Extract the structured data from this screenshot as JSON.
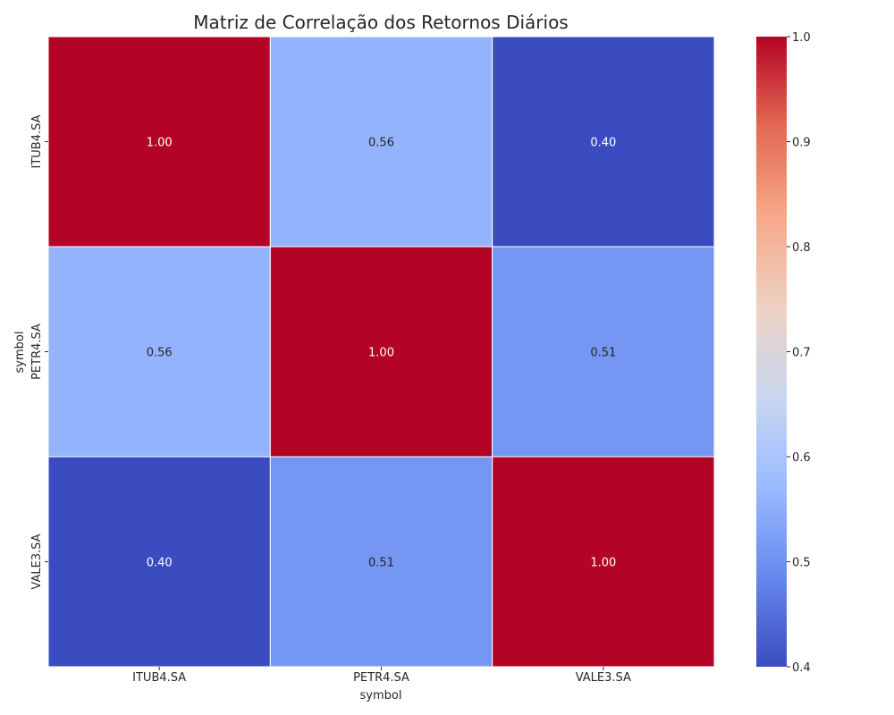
{
  "chart_data": {
    "type": "heatmap",
    "title": "Matriz de Correlação dos Retornos Diários",
    "xlabel": "symbol",
    "ylabel": "symbol",
    "x_categories": [
      "ITUB4.SA",
      "PETR4.SA",
      "VALE3.SA"
    ],
    "y_categories": [
      "ITUB4.SA",
      "PETR4.SA",
      "VALE3.SA"
    ],
    "values": [
      [
        1.0,
        0.56,
        0.4
      ],
      [
        0.56,
        1.0,
        0.51
      ],
      [
        0.4,
        0.51,
        1.0
      ]
    ],
    "cell_labels": [
      [
        "1.00",
        "0.56",
        "0.40"
      ],
      [
        "0.56",
        "1.00",
        "0.51"
      ],
      [
        "0.40",
        "0.51",
        "1.00"
      ]
    ],
    "colormap": "coolwarm",
    "colormap_stops": [
      "#3b4cc0",
      "#6788ee",
      "#9abbff",
      "#c9d7f0",
      "#edd1c2",
      "#f7a889",
      "#e26952",
      "#b40426"
    ],
    "vmin": 0.4,
    "vmax": 1.0,
    "colorbar_ticks": [
      "0.4",
      "0.5",
      "0.6",
      "0.7",
      "0.8",
      "0.9",
      "1.0"
    ],
    "grid": false,
    "legend": "colorbar-right"
  }
}
